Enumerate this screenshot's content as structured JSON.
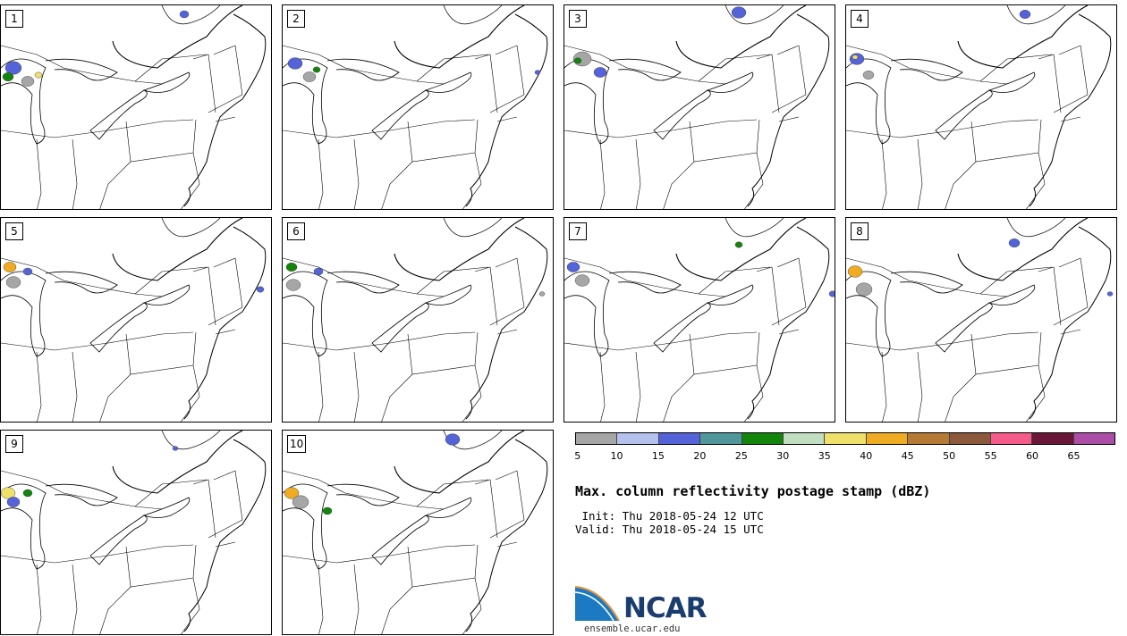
{
  "panels": [
    {
      "label": "1"
    },
    {
      "label": "2"
    },
    {
      "label": "3"
    },
    {
      "label": "4"
    },
    {
      "label": "5"
    },
    {
      "label": "6"
    },
    {
      "label": "7"
    },
    {
      "label": "8"
    },
    {
      "label": "9"
    },
    {
      "label": "10"
    }
  ],
  "legend": {
    "colors": [
      "#a6a6a6",
      "#b5c1ec",
      "#5563d9",
      "#4f979b",
      "#13850b",
      "#c1dfc0",
      "#efe06c",
      "#efab21",
      "#b57b35",
      "#8b5a3c",
      "#f55b8a",
      "#6a1838",
      "#ad4ea6"
    ],
    "ticks": [
      "5",
      "10",
      "15",
      "20",
      "25",
      "30",
      "35",
      "40",
      "45",
      "50",
      "55",
      "60",
      "65"
    ]
  },
  "title": "Max. column reflectivity postage stamp (dBZ)",
  "init": " Init: Thu 2018-05-24 12 UTC",
  "valid": "Valid: Thu 2018-05-24 15 UTC",
  "logo": {
    "text": "NCAR",
    "website": "ensemble.ucar.edu"
  }
}
